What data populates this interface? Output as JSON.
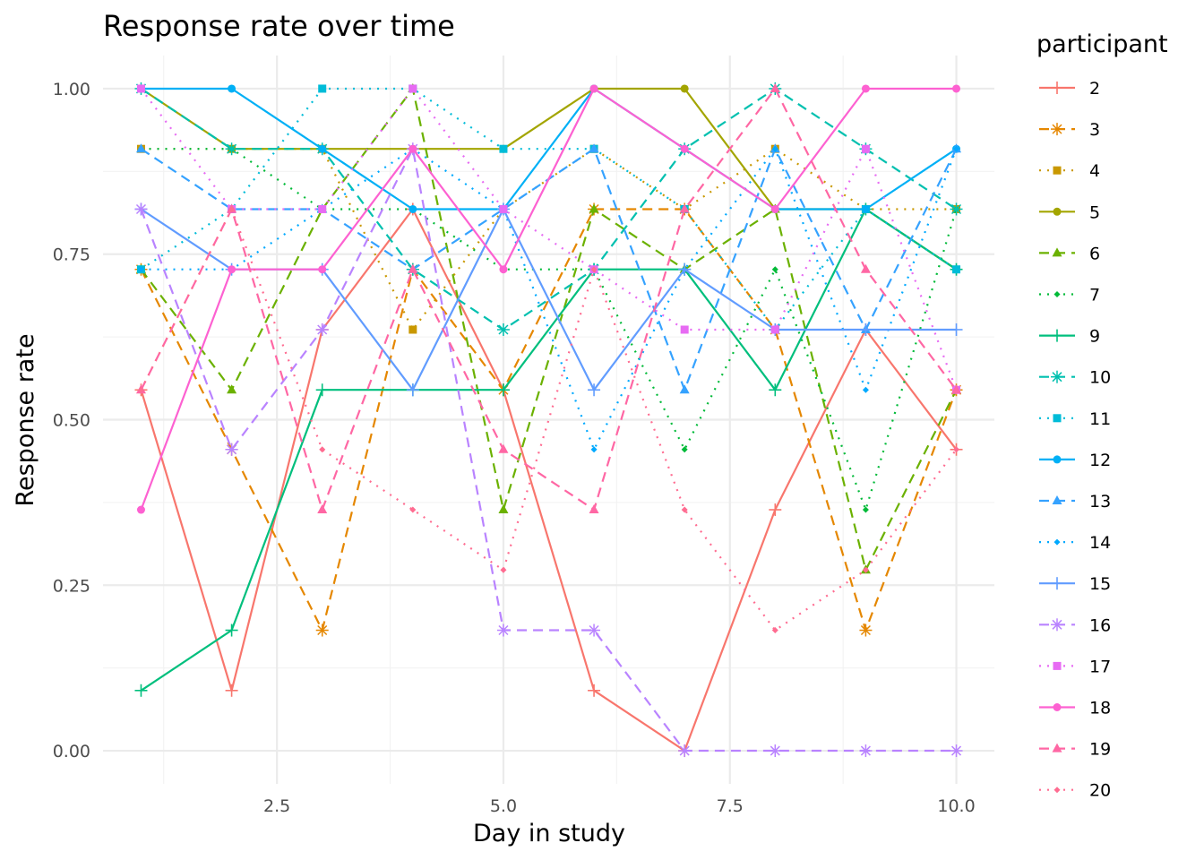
{
  "chart_data": {
    "type": "line",
    "title": "Response rate over time",
    "xlabel": "Day in study",
    "ylabel": "Response rate",
    "xlim": [
      0.58,
      10.42
    ],
    "ylim": [
      -0.05,
      1.05
    ],
    "x_ticks": [
      2.5,
      5.0,
      7.5,
      10.0
    ],
    "x_tick_labels": [
      "2.5",
      "5.0",
      "7.5",
      "10.0"
    ],
    "y_ticks": [
      0.0,
      0.25,
      0.5,
      0.75,
      1.0
    ],
    "y_tick_labels": [
      "0.00",
      "0.25",
      "0.50",
      "0.75",
      "1.00"
    ],
    "grid": true,
    "legend_title": "participant",
    "legend_position": "right",
    "x": [
      1,
      2,
      3,
      4,
      5,
      6,
      7,
      8,
      9,
      10
    ],
    "series": [
      {
        "name": "2",
        "color": "#F8766D",
        "dash": "solid",
        "shape": "plus",
        "values": [
          0.545,
          0.091,
          0.636,
          0.818,
          0.545,
          0.091,
          0.0,
          0.364,
          0.636,
          0.455
        ]
      },
      {
        "name": "3",
        "color": "#E58700",
        "dash": "dashed",
        "shape": "asterisk",
        "values": [
          0.727,
          0.455,
          0.182,
          0.727,
          0.545,
          0.818,
          0.818,
          0.636,
          0.182,
          0.545
        ]
      },
      {
        "name": "4",
        "color": "#C99800",
        "dash": "dotted",
        "shape": "square",
        "values": [
          0.909,
          0.909,
          0.909,
          0.636,
          0.818,
          0.909,
          0.818,
          0.909,
          0.818,
          0.818
        ]
      },
      {
        "name": "5",
        "color": "#A3A500",
        "dash": "solid",
        "shape": "circle",
        "values": [
          1.0,
          0.909,
          0.909,
          0.909,
          0.909,
          1.0,
          1.0,
          0.818,
          0.818,
          0.727
        ]
      },
      {
        "name": "6",
        "color": "#6BB100",
        "dash": "dashed",
        "shape": "triangle",
        "values": [
          0.727,
          0.545,
          0.818,
          1.0,
          0.364,
          0.818,
          0.727,
          0.818,
          0.273,
          0.545
        ]
      },
      {
        "name": "7",
        "color": "#00BA38",
        "dash": "dotted",
        "shape": "diamond",
        "values": [
          0.909,
          0.909,
          0.818,
          0.818,
          0.727,
          0.727,
          0.455,
          0.727,
          0.364,
          0.818
        ]
      },
      {
        "name": "9",
        "color": "#00BF7D",
        "dash": "solid",
        "shape": "plus",
        "values": [
          0.091,
          0.182,
          0.545,
          0.545,
          0.545,
          0.727,
          0.727,
          0.545,
          0.818,
          0.727
        ]
      },
      {
        "name": "10",
        "color": "#00C0AF",
        "dash": "dashed",
        "shape": "asterisk",
        "values": [
          1.0,
          0.909,
          0.909,
          0.727,
          0.636,
          0.727,
          0.909,
          1.0,
          0.909,
          0.818
        ]
      },
      {
        "name": "11",
        "color": "#00BCD8",
        "dash": "dotted",
        "shape": "square",
        "values": [
          0.727,
          0.818,
          1.0,
          1.0,
          0.909,
          0.909,
          0.818,
          0.636,
          0.818,
          0.727
        ]
      },
      {
        "name": "12",
        "color": "#00B0F6",
        "dash": "solid",
        "shape": "circle",
        "values": [
          1.0,
          1.0,
          0.909,
          0.818,
          0.818,
          1.0,
          0.909,
          0.818,
          0.818,
          0.909
        ]
      },
      {
        "name": "13",
        "color": "#35A2FF",
        "dash": "dashed",
        "shape": "triangle",
        "values": [
          0.909,
          0.818,
          0.818,
          0.727,
          0.818,
          0.909,
          0.545,
          0.909,
          0.636,
          0.909
        ]
      },
      {
        "name": "14",
        "color": "#00A9FF",
        "dash": "dotted",
        "shape": "diamond",
        "values": [
          0.727,
          0.727,
          0.818,
          0.909,
          0.818,
          0.455,
          0.727,
          0.909,
          0.545,
          0.909
        ]
      },
      {
        "name": "15",
        "color": "#619CFF",
        "dash": "solid",
        "shape": "plus",
        "values": [
          0.818,
          0.727,
          0.727,
          0.545,
          0.818,
          0.545,
          0.727,
          0.636,
          0.636,
          0.636
        ]
      },
      {
        "name": "16",
        "color": "#B983FF",
        "dash": "dashed",
        "shape": "asterisk",
        "values": [
          0.818,
          0.455,
          0.636,
          0.909,
          0.182,
          0.182,
          0.0,
          0.0,
          0.0,
          0.0
        ]
      },
      {
        "name": "17",
        "color": "#E76BF3",
        "dash": "dotted",
        "shape": "square",
        "values": [
          1.0,
          0.818,
          0.818,
          1.0,
          0.818,
          0.727,
          0.636,
          0.636,
          0.909,
          0.545
        ]
      },
      {
        "name": "18",
        "color": "#FD61D1",
        "dash": "solid",
        "shape": "circle",
        "values": [
          0.364,
          0.727,
          0.727,
          0.909,
          0.727,
          1.0,
          0.909,
          0.818,
          1.0,
          1.0
        ]
      },
      {
        "name": "19",
        "color": "#FF67A4",
        "dash": "dashed",
        "shape": "triangle",
        "values": [
          0.545,
          0.818,
          0.364,
          0.727,
          0.455,
          0.364,
          0.818,
          1.0,
          0.727,
          0.545
        ]
      },
      {
        "name": "20",
        "color": "#FF6C91",
        "dash": "dotted",
        "shape": "diamond",
        "values": [
          0.545,
          0.818,
          0.455,
          0.364,
          0.273,
          0.727,
          0.364,
          0.182,
          0.273,
          0.455
        ]
      }
    ]
  }
}
